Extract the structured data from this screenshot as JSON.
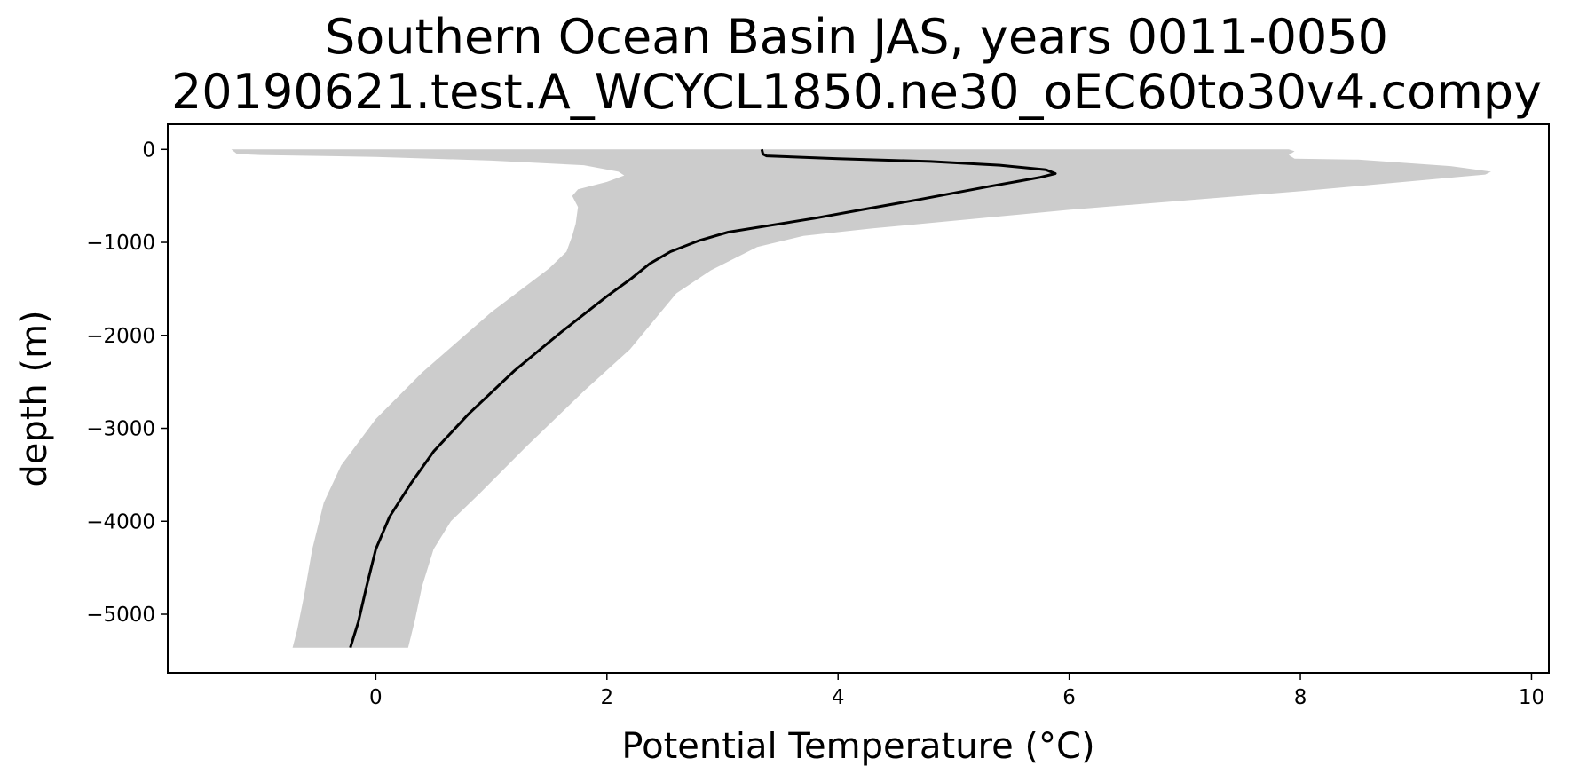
{
  "chart_data": {
    "type": "line",
    "title": "Southern Ocean Basin JAS, years 0011-0050",
    "subtitle": "20190621.test.A_WCYCL1850.ne30_oEC60to30v4.compy",
    "xlabel": "Potential Temperature (°C)",
    "ylabel": "depth (m)",
    "xlim": [
      -1.8,
      10.15
    ],
    "ylim": [
      -5630,
      270
    ],
    "x_ticks": [
      0,
      2,
      4,
      6,
      8,
      10
    ],
    "x_tick_labels": [
      "0",
      "2",
      "4",
      "6",
      "8",
      "10"
    ],
    "y_ticks": [
      0,
      -1000,
      -2000,
      -3000,
      -4000,
      -5000
    ],
    "y_tick_labels": [
      "0",
      "−1000",
      "−2000",
      "−3000",
      "−4000",
      "−5000"
    ],
    "grid": false,
    "series": [
      {
        "kind": "line",
        "color": "#000000",
        "points": [
          [
            3.34,
            0
          ],
          [
            3.35,
            -50
          ],
          [
            3.38,
            -70
          ],
          [
            4.0,
            -100
          ],
          [
            4.8,
            -130
          ],
          [
            5.4,
            -170
          ],
          [
            5.8,
            -220
          ],
          [
            5.88,
            -260
          ],
          [
            5.75,
            -300
          ],
          [
            5.3,
            -400
          ],
          [
            4.7,
            -540
          ],
          [
            4.2,
            -650
          ],
          [
            3.8,
            -740
          ],
          [
            3.4,
            -820
          ],
          [
            3.05,
            -890
          ],
          [
            2.8,
            -980
          ],
          [
            2.55,
            -1100
          ],
          [
            2.37,
            -1230
          ],
          [
            2.2,
            -1400
          ],
          [
            2.0,
            -1580
          ],
          [
            1.6,
            -1970
          ],
          [
            1.2,
            -2380
          ],
          [
            0.8,
            -2850
          ],
          [
            0.5,
            -3250
          ],
          [
            0.3,
            -3600
          ],
          [
            0.12,
            -3950
          ],
          [
            0.0,
            -4300
          ],
          [
            -0.08,
            -4700
          ],
          [
            -0.15,
            -5080
          ],
          [
            -0.22,
            -5360
          ]
        ]
      },
      {
        "kind": "band",
        "color": "#cccccc",
        "points": [
          [
            -1.25,
            0
          ],
          [
            -1.2,
            -50
          ],
          [
            -1.0,
            -60
          ],
          [
            0,
            -80
          ],
          [
            1.0,
            -120
          ],
          [
            1.8,
            -170
          ],
          [
            2.1,
            -240
          ],
          [
            2.15,
            -280
          ],
          [
            2.0,
            -350
          ],
          [
            1.75,
            -430
          ],
          [
            1.7,
            -500
          ],
          [
            1.75,
            -620
          ],
          [
            1.73,
            -800
          ],
          [
            1.7,
            -930
          ],
          [
            1.65,
            -1100
          ],
          [
            1.5,
            -1280
          ],
          [
            1.0,
            -1750
          ],
          [
            0.4,
            -2400
          ],
          [
            0.0,
            -2900
          ],
          [
            -0.3,
            -3400
          ],
          [
            -0.45,
            -3800
          ],
          [
            -0.55,
            -4300
          ],
          [
            -0.62,
            -4800
          ],
          [
            -0.68,
            -5170
          ],
          [
            -0.72,
            -5360
          ],
          [
            0.28,
            -5360
          ],
          [
            0.34,
            -5060
          ],
          [
            0.4,
            -4700
          ],
          [
            0.5,
            -4300
          ],
          [
            0.65,
            -4000
          ],
          [
            0.9,
            -3700
          ],
          [
            1.3,
            -3200
          ],
          [
            1.8,
            -2600
          ],
          [
            2.2,
            -2150
          ],
          [
            2.6,
            -1550
          ],
          [
            2.9,
            -1300
          ],
          [
            3.3,
            -1050
          ],
          [
            3.7,
            -930
          ],
          [
            4.3,
            -850
          ],
          [
            6.0,
            -650
          ],
          [
            8.0,
            -450
          ],
          [
            9.6,
            -270
          ],
          [
            9.65,
            -240
          ],
          [
            9.3,
            -180
          ],
          [
            8.5,
            -110
          ],
          [
            7.95,
            -100
          ],
          [
            7.9,
            -60
          ],
          [
            7.95,
            -20
          ],
          [
            7.9,
            0
          ]
        ]
      }
    ]
  }
}
